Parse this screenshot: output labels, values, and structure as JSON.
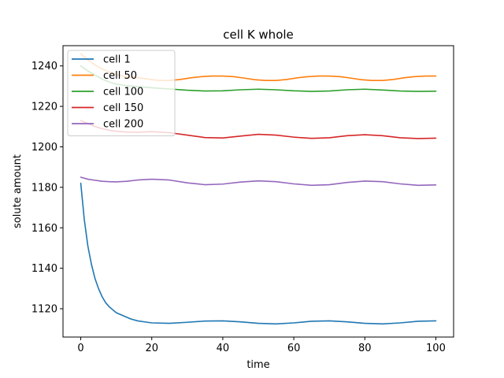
{
  "chart_data": {
    "type": "line",
    "title": "cell K whole",
    "xlabel": "time",
    "ylabel": "solute amount",
    "xlim": [
      -5,
      105
    ],
    "ylim": [
      1106,
      1250
    ],
    "xticks": [
      0,
      20,
      40,
      60,
      80,
      100
    ],
    "yticks": [
      1120,
      1140,
      1160,
      1180,
      1200,
      1220,
      1240
    ],
    "grid": false,
    "legend_position": "upper-left",
    "series": [
      {
        "name": "cell 1",
        "color": "#1f77b4",
        "x": [
          0,
          1,
          2,
          3,
          4,
          5,
          6,
          7,
          8,
          9,
          10,
          12,
          14,
          16,
          18,
          20,
          25,
          30,
          35,
          40,
          45,
          50,
          55,
          60,
          65,
          70,
          75,
          80,
          85,
          90,
          95,
          100
        ],
        "y": [
          1182,
          1164,
          1151,
          1142,
          1135,
          1130,
          1126,
          1123,
          1121,
          1119.5,
          1118,
          1116.5,
          1115,
          1114,
          1113.5,
          1113,
          1112.8,
          1113.3,
          1113.9,
          1114,
          1113.5,
          1112.8,
          1112.5,
          1113,
          1113.8,
          1114,
          1113.5,
          1112.8,
          1112.5,
          1113,
          1113.8,
          1114
        ]
      },
      {
        "name": "cell 50",
        "color": "#ff7f0e",
        "x": [
          0,
          2,
          4,
          6,
          8,
          10,
          13,
          16,
          19,
          22,
          25,
          28,
          31,
          34,
          37,
          40,
          43,
          46,
          49,
          52,
          55,
          58,
          61,
          64,
          67,
          70,
          73,
          76,
          79,
          82,
          85,
          88,
          91,
          94,
          97,
          100
        ],
        "y": [
          1246,
          1243,
          1240.5,
          1238.5,
          1237,
          1235.8,
          1234.5,
          1234.2,
          1233.5,
          1232.8,
          1232.8,
          1233.3,
          1234.1,
          1234.7,
          1235,
          1235,
          1234.7,
          1234,
          1233.2,
          1232.8,
          1232.8,
          1233.3,
          1234.1,
          1234.7,
          1235,
          1235,
          1234.7,
          1234,
          1233.2,
          1232.8,
          1232.8,
          1233.3,
          1234.1,
          1234.7,
          1235,
          1235
        ]
      },
      {
        "name": "cell 100",
        "color": "#2ca02c",
        "x": [
          0,
          2,
          4,
          6,
          8,
          10,
          13,
          16,
          20,
          25,
          30,
          35,
          40,
          45,
          50,
          55,
          60,
          65,
          70,
          75,
          80,
          85,
          90,
          95,
          100
        ],
        "y": [
          1240,
          1237.5,
          1235.5,
          1233.5,
          1232,
          1231,
          1230.2,
          1229.8,
          1229.2,
          1228.6,
          1228,
          1227.6,
          1227.7,
          1228.2,
          1228.5,
          1228.2,
          1227.7,
          1227.4,
          1227.6,
          1228.2,
          1228.5,
          1228.1,
          1227.6,
          1227.4,
          1227.5
        ]
      },
      {
        "name": "cell 150",
        "color": "#d62728",
        "x": [
          0,
          2,
          4,
          6,
          8,
          10,
          13,
          16,
          20,
          25,
          30,
          35,
          40,
          45,
          50,
          55,
          60,
          65,
          70,
          75,
          80,
          85,
          90,
          95,
          100
        ],
        "y": [
          1213,
          1211.5,
          1210,
          1209,
          1208.2,
          1207.7,
          1207.3,
          1207.2,
          1207.5,
          1207,
          1205.8,
          1204.6,
          1204.4,
          1205.3,
          1206.2,
          1205.8,
          1204.8,
          1204.2,
          1204.5,
          1205.5,
          1206,
          1205.5,
          1204.5,
          1204.1,
          1204.3
        ]
      },
      {
        "name": "cell 200",
        "color": "#9467bd",
        "x": [
          0,
          2,
          4,
          6,
          8,
          10,
          13,
          16,
          20,
          25,
          30,
          35,
          40,
          45,
          50,
          55,
          60,
          65,
          70,
          75,
          80,
          85,
          90,
          95,
          100
        ],
        "y": [
          1185,
          1184,
          1183.5,
          1183,
          1182.8,
          1182.7,
          1183,
          1183.6,
          1184,
          1183.6,
          1182.2,
          1181.3,
          1181.6,
          1182.6,
          1183.2,
          1182.8,
          1181.7,
          1181,
          1181.3,
          1182.4,
          1183.1,
          1182.8,
          1181.7,
          1181,
          1181.2
        ]
      }
    ]
  }
}
